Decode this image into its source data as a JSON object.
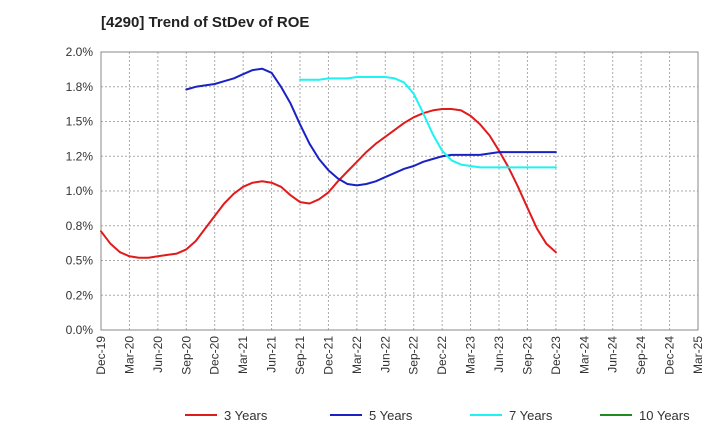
{
  "chart_data": {
    "type": "line",
    "title": "[4290]  Trend of StDev of ROE",
    "xlabel": "",
    "ylabel": "",
    "x_ticks": [
      "Dec-19",
      "Mar-20",
      "Jun-20",
      "Sep-20",
      "Dec-20",
      "Mar-21",
      "Jun-21",
      "Sep-21",
      "Dec-21",
      "Mar-22",
      "Jun-22",
      "Sep-22",
      "Dec-22",
      "Mar-23",
      "Jun-23",
      "Sep-23",
      "Dec-23",
      "Mar-24",
      "Jun-24",
      "Sep-24",
      "Dec-24",
      "Mar-25"
    ],
    "y_ticks": [
      "0.0%",
      "0.2%",
      "0.5%",
      "0.8%",
      "1.0%",
      "1.2%",
      "1.5%",
      "1.8%",
      "2.0%"
    ],
    "ylim": [
      0,
      2.0
    ],
    "grid": true,
    "legend_position": "bottom",
    "series": [
      {
        "name": "3 Years",
        "color": "#e01b1b",
        "points": [
          [
            0,
            0.71
          ],
          [
            1,
            0.62
          ],
          [
            2,
            0.56
          ],
          [
            3,
            0.53
          ],
          [
            4,
            0.52
          ],
          [
            5,
            0.52
          ],
          [
            6,
            0.53
          ],
          [
            7,
            0.54
          ],
          [
            8,
            0.55
          ],
          [
            9,
            0.58
          ],
          [
            10,
            0.64
          ],
          [
            11,
            0.73
          ],
          [
            12,
            0.82
          ],
          [
            13,
            0.91
          ],
          [
            14,
            0.98
          ],
          [
            15,
            1.03
          ],
          [
            16,
            1.06
          ],
          [
            17,
            1.07
          ],
          [
            18,
            1.06
          ],
          [
            19,
            1.03
          ],
          [
            20,
            0.97
          ],
          [
            21,
            0.92
          ],
          [
            22,
            0.91
          ],
          [
            23,
            0.94
          ],
          [
            24,
            0.99
          ],
          [
            25,
            1.07
          ],
          [
            26,
            1.14
          ],
          [
            27,
            1.21
          ],
          [
            28,
            1.28
          ],
          [
            29,
            1.34
          ],
          [
            30,
            1.39
          ],
          [
            31,
            1.44
          ],
          [
            32,
            1.49
          ],
          [
            33,
            1.53
          ],
          [
            34,
            1.56
          ],
          [
            35,
            1.58
          ],
          [
            36,
            1.59
          ],
          [
            37,
            1.59
          ],
          [
            38,
            1.58
          ],
          [
            39,
            1.54
          ],
          [
            40,
            1.48
          ],
          [
            41,
            1.4
          ],
          [
            42,
            1.29
          ],
          [
            43,
            1.17
          ],
          [
            44,
            1.03
          ],
          [
            45,
            0.88
          ],
          [
            46,
            0.73
          ],
          [
            47,
            0.62
          ],
          [
            48,
            0.56
          ]
        ]
      },
      {
        "name": "5 Years",
        "color": "#1a22c4",
        "points": [
          [
            9,
            1.73
          ],
          [
            10,
            1.75
          ],
          [
            11,
            1.76
          ],
          [
            12,
            1.77
          ],
          [
            13,
            1.79
          ],
          [
            14,
            1.81
          ],
          [
            15,
            1.84
          ],
          [
            16,
            1.87
          ],
          [
            17,
            1.88
          ],
          [
            18,
            1.85
          ],
          [
            19,
            1.75
          ],
          [
            20,
            1.63
          ],
          [
            21,
            1.48
          ],
          [
            22,
            1.34
          ],
          [
            23,
            1.23
          ],
          [
            24,
            1.15
          ],
          [
            25,
            1.09
          ],
          [
            26,
            1.05
          ],
          [
            27,
            1.04
          ],
          [
            28,
            1.05
          ],
          [
            29,
            1.07
          ],
          [
            30,
            1.1
          ],
          [
            31,
            1.13
          ],
          [
            32,
            1.16
          ],
          [
            33,
            1.18
          ],
          [
            34,
            1.21
          ],
          [
            35,
            1.23
          ],
          [
            36,
            1.25
          ],
          [
            37,
            1.26
          ],
          [
            38,
            1.26
          ],
          [
            39,
            1.26
          ],
          [
            40,
            1.26
          ],
          [
            41,
            1.27
          ],
          [
            42,
            1.28
          ],
          [
            43,
            1.28
          ],
          [
            44,
            1.28
          ],
          [
            45,
            1.28
          ],
          [
            46,
            1.28
          ],
          [
            47,
            1.28
          ],
          [
            48,
            1.28
          ]
        ]
      },
      {
        "name": "7 Years",
        "color": "#1ef2f2",
        "points": [
          [
            21,
            1.8
          ],
          [
            22,
            1.8
          ],
          [
            23,
            1.8
          ],
          [
            24,
            1.81
          ],
          [
            25,
            1.81
          ],
          [
            26,
            1.81
          ],
          [
            27,
            1.82
          ],
          [
            28,
            1.82
          ],
          [
            29,
            1.82
          ],
          [
            30,
            1.82
          ],
          [
            31,
            1.81
          ],
          [
            32,
            1.78
          ],
          [
            33,
            1.7
          ],
          [
            34,
            1.56
          ],
          [
            35,
            1.41
          ],
          [
            36,
            1.29
          ],
          [
            37,
            1.22
          ],
          [
            38,
            1.19
          ],
          [
            39,
            1.18
          ],
          [
            40,
            1.17
          ],
          [
            41,
            1.17
          ],
          [
            42,
            1.17
          ],
          [
            43,
            1.17
          ],
          [
            44,
            1.17
          ],
          [
            45,
            1.17
          ],
          [
            46,
            1.17
          ],
          [
            47,
            1.17
          ],
          [
            48,
            1.17
          ]
        ]
      },
      {
        "name": "10 Years",
        "color": "#1f8a1f",
        "points": []
      }
    ]
  }
}
